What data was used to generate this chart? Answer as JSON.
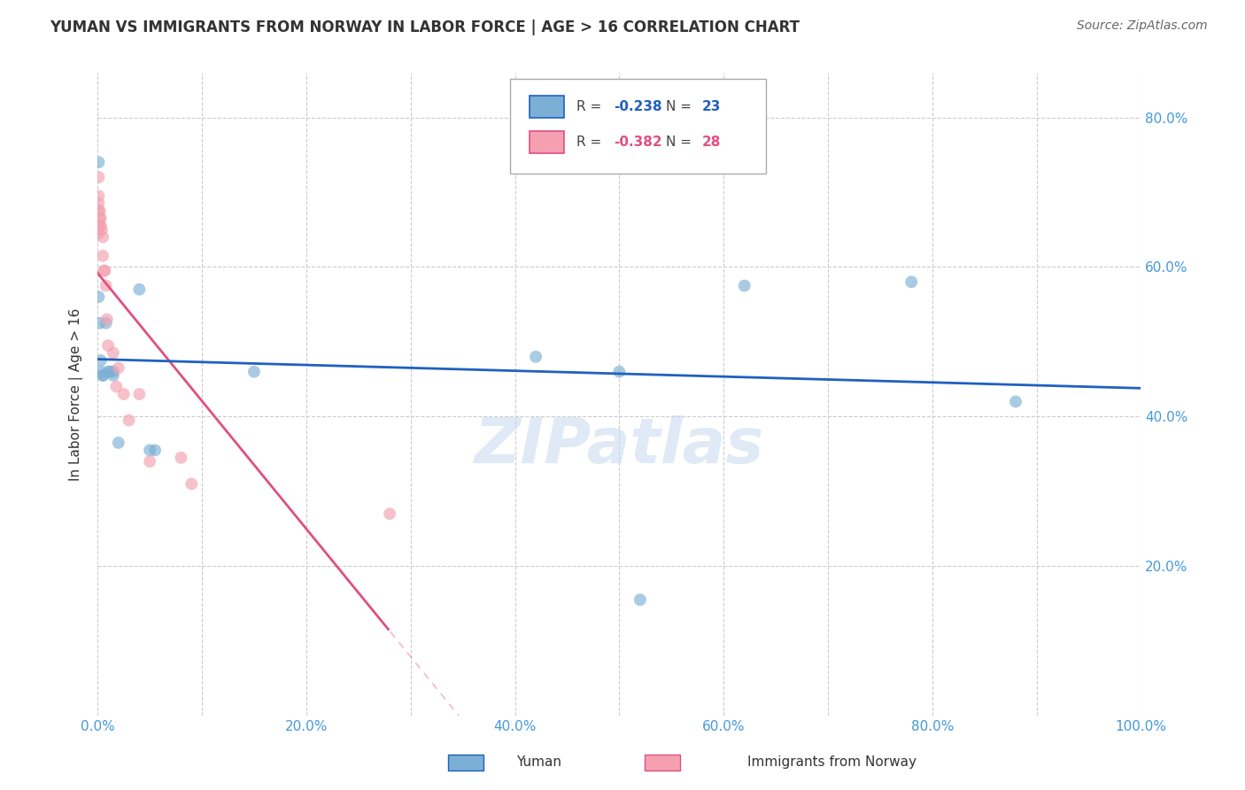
{
  "title": "YUMAN VS IMMIGRANTS FROM NORWAY IN LABOR FORCE | AGE > 16 CORRELATION CHART",
  "source": "Source: ZipAtlas.com",
  "ylabel": "In Labor Force | Age > 16",
  "watermark": "ZIPatlas",
  "yuman_x": [
    0.1,
    0.1,
    0.2,
    0.3,
    0.3,
    0.5,
    0.5,
    0.8,
    1.0,
    1.2,
    1.5,
    1.5,
    2.0,
    4.0,
    5.0,
    5.5,
    42.0,
    50.0,
    52.0,
    62.0,
    78.0,
    88.0,
    15.0
  ],
  "yuman_y": [
    0.74,
    0.56,
    0.525,
    0.475,
    0.46,
    0.455,
    0.455,
    0.525,
    0.46,
    0.46,
    0.46,
    0.455,
    0.365,
    0.57,
    0.355,
    0.355,
    0.48,
    0.46,
    0.155,
    0.575,
    0.58,
    0.42,
    0.46
  ],
  "norway_x": [
    0.1,
    0.1,
    0.1,
    0.1,
    0.1,
    0.2,
    0.2,
    0.2,
    0.3,
    0.3,
    0.4,
    0.5,
    0.5,
    0.6,
    0.7,
    0.8,
    0.9,
    1.0,
    1.5,
    1.8,
    2.0,
    2.5,
    3.0,
    4.0,
    5.0,
    8.0,
    9.0,
    28.0
  ],
  "norway_y": [
    0.72,
    0.695,
    0.685,
    0.675,
    0.645,
    0.675,
    0.665,
    0.655,
    0.665,
    0.655,
    0.65,
    0.64,
    0.615,
    0.595,
    0.595,
    0.575,
    0.53,
    0.495,
    0.485,
    0.44,
    0.465,
    0.43,
    0.395,
    0.43,
    0.34,
    0.345,
    0.31,
    0.27
  ],
  "yuman_color": "#7bafd4",
  "norway_color": "#f4a0b0",
  "yuman_line_color": "#2060c0",
  "norway_line_color": "#e05080",
  "R_yuman": "-0.238",
  "N_yuman": "23",
  "R_norway": "-0.382",
  "N_norway": "28",
  "xlim": [
    0,
    100
  ],
  "ylim": [
    0,
    0.86
  ],
  "xticks": [
    0,
    20,
    40,
    60,
    80,
    100
  ],
  "xticklabels": [
    "0.0%",
    "20.0%",
    "40.0%",
    "60.0%",
    "80.0%",
    "100.0%"
  ],
  "yticks": [
    0.0,
    0.2,
    0.4,
    0.6,
    0.8
  ],
  "yticklabels_right": [
    "",
    "20.0%",
    "40.0%",
    "60.0%",
    "80.0%"
  ],
  "background_color": "#ffffff",
  "grid_color": "#cccccc",
  "tick_color": "#4499dd",
  "title_color": "#333333",
  "marker_size": 100
}
